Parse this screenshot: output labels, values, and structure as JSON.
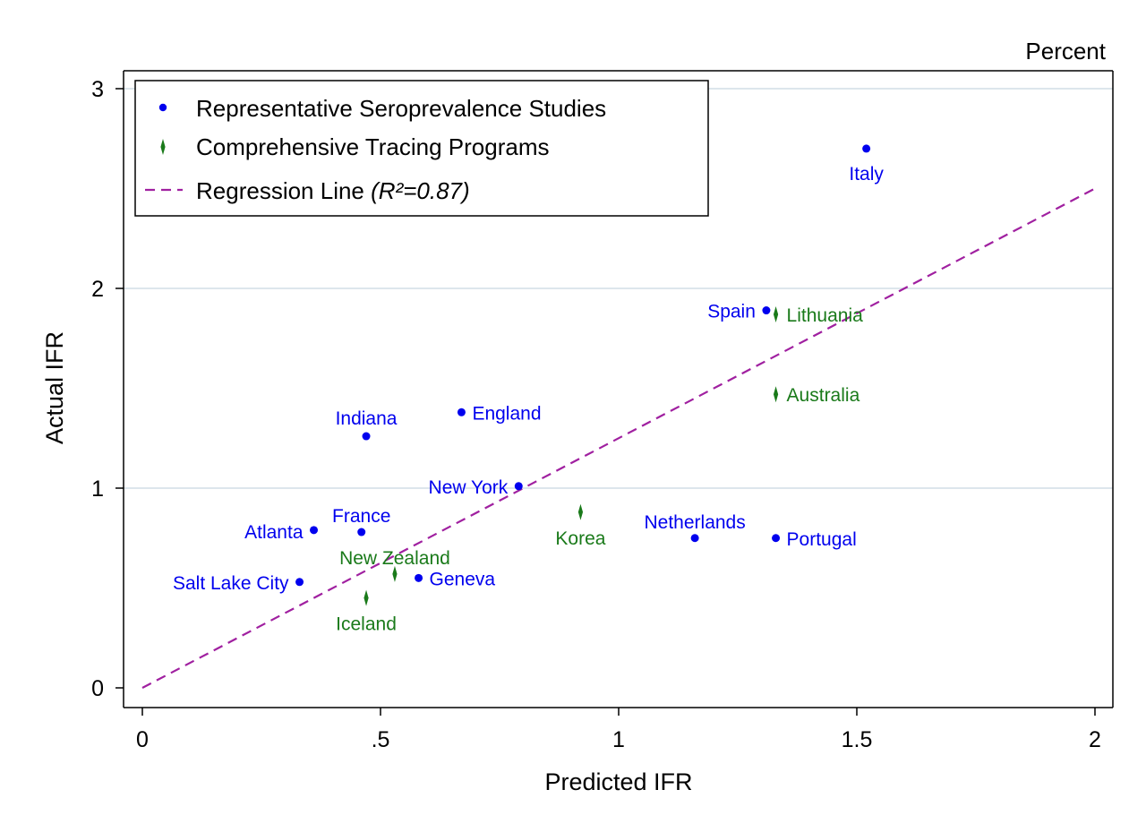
{
  "chart_data": {
    "type": "scatter",
    "unit_label": "Percent",
    "xlabel": "Predicted IFR",
    "ylabel": "Actual IFR",
    "xlim": [
      0,
      2
    ],
    "ylim": [
      0,
      3
    ],
    "x_ticks": [
      {
        "value": 0,
        "label": "0"
      },
      {
        "value": 0.5,
        "label": ".5"
      },
      {
        "value": 1,
        "label": "1"
      },
      {
        "value": 1.5,
        "label": "1.5"
      },
      {
        "value": 2,
        "label": "2"
      }
    ],
    "y_ticks": [
      {
        "value": 0,
        "label": "0"
      },
      {
        "value": 1,
        "label": "1"
      },
      {
        "value": 2,
        "label": "2"
      },
      {
        "value": 3,
        "label": "3"
      }
    ],
    "grid": "horizontal",
    "legend_position": "top-left",
    "colors": {
      "sero": "#0000ee",
      "tracing": "#1a7a1a",
      "regression": "#a020a0",
      "grid": "#dde6ec"
    },
    "series": [
      {
        "name": "Representative Seroprevalence Studies",
        "marker": "dot",
        "points": [
          {
            "label": "Italy",
            "x": 1.52,
            "y": 2.7
          },
          {
            "label": "Spain",
            "x": 1.31,
            "y": 1.89
          },
          {
            "label": "England",
            "x": 0.67,
            "y": 1.38
          },
          {
            "label": "Indiana",
            "x": 0.47,
            "y": 1.26
          },
          {
            "label": "New York",
            "x": 0.79,
            "y": 1.01
          },
          {
            "label": "Atlanta",
            "x": 0.36,
            "y": 0.79
          },
          {
            "label": "France",
            "x": 0.46,
            "y": 0.78
          },
          {
            "label": "Netherlands",
            "x": 1.16,
            "y": 0.75
          },
          {
            "label": "Portugal",
            "x": 1.33,
            "y": 0.75
          },
          {
            "label": "Geneva",
            "x": 0.58,
            "y": 0.55
          },
          {
            "label": "Salt Lake City",
            "x": 0.33,
            "y": 0.53
          }
        ]
      },
      {
        "name": "Comprehensive Tracing Programs",
        "marker": "spike",
        "points": [
          {
            "label": "Lithuania",
            "x": 1.33,
            "y": 1.87
          },
          {
            "label": "Australia",
            "x": 1.33,
            "y": 1.47
          },
          {
            "label": "Korea",
            "x": 0.92,
            "y": 0.88
          },
          {
            "label": "New Zealand",
            "x": 0.53,
            "y": 0.57
          },
          {
            "label": "Iceland",
            "x": 0.47,
            "y": 0.45
          }
        ]
      }
    ],
    "regression": {
      "name_prefix": "Regression Line ",
      "r2_label": "(R²=0.87)",
      "x": [
        0,
        2
      ],
      "y": [
        0,
        2.5
      ]
    }
  }
}
